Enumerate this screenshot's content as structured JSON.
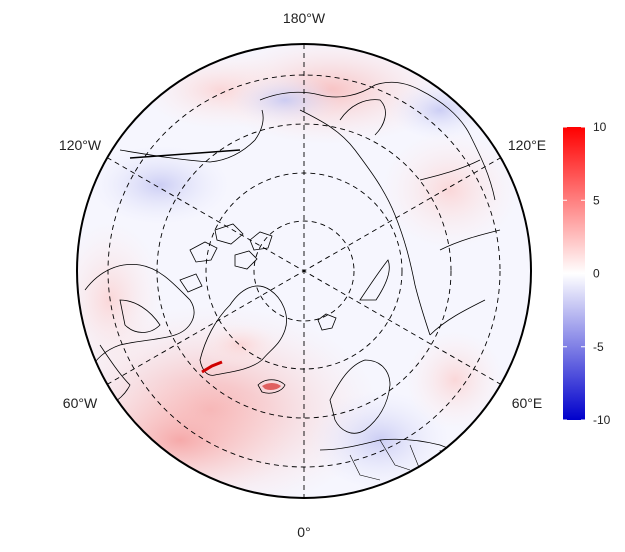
{
  "map": {
    "projection": "north-polar-stereographic",
    "longitude_labels": {
      "top": "180°W",
      "upper_left": "120°W",
      "upper_right": "120°E",
      "lower_left": "60°W",
      "lower_right": "60°E",
      "bottom": "0°"
    },
    "graticule": {
      "style": "dashed",
      "color": "#000000"
    },
    "coastline_color": "#000000",
    "land_outline": "black"
  },
  "colorbar": {
    "min": -10,
    "max": 10,
    "ticks": [
      "10",
      "5",
      "0",
      "-5",
      "-10"
    ],
    "tick_values": [
      10,
      5,
      0,
      -5,
      -10
    ],
    "color_low": "#0000cc",
    "color_mid": "#ffffff",
    "color_high": "#ff0000"
  },
  "field_pattern": {
    "north_atlantic": "warm",
    "greenland_southeast_coast": "strong warm",
    "canadian_arctic_archipelago_north": "cool",
    "bering_sea": "warm",
    "eastern_siberia": "slightly warm",
    "northern_europe": "slightly cool"
  }
}
